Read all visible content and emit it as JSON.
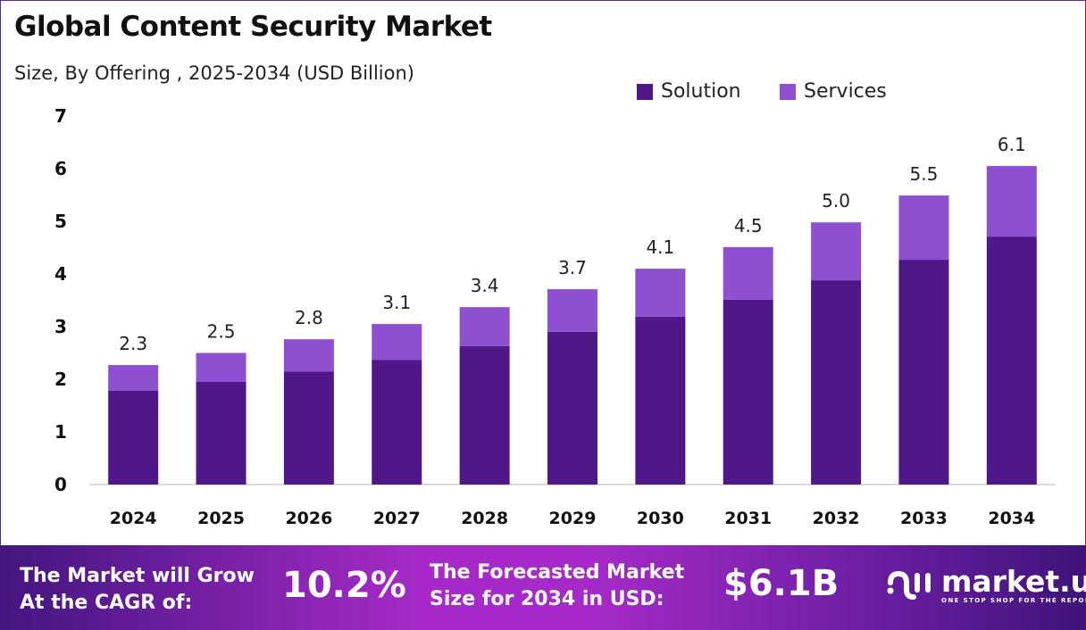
{
  "header": {
    "title": "Global Content Security Market",
    "subtitle": "Size, By Offering , 2025-2034 (USD Billion)"
  },
  "chart_data": {
    "type": "bar",
    "stacked": true,
    "title": "Global Content Security Market",
    "subtitle": "Size, By Offering , 2025-2034 (USD Billion)",
    "categories": [
      "2024",
      "2025",
      "2026",
      "2027",
      "2028",
      "2029",
      "2030",
      "2031",
      "2032",
      "2033",
      "2034"
    ],
    "series": [
      {
        "name": "Solution",
        "color": "#4f1787",
        "values": [
          1.78,
          1.95,
          2.15,
          2.37,
          2.63,
          2.9,
          3.19,
          3.51,
          3.88,
          4.27,
          4.71
        ]
      },
      {
        "name": "Services",
        "color": "#8e4fd0",
        "values": [
          0.49,
          0.55,
          0.61,
          0.68,
          0.74,
          0.81,
          0.91,
          1.0,
          1.1,
          1.22,
          1.34
        ]
      }
    ],
    "totals_labels": [
      "2.3",
      "2.5",
      "2.8",
      "3.1",
      "3.4",
      "3.7",
      "4.1",
      "4.5",
      "5.0",
      "5.5",
      "6.1"
    ],
    "yticks": [
      "0",
      "1",
      "2",
      "3",
      "4",
      "5",
      "6",
      "7"
    ],
    "ylim": [
      0,
      7
    ],
    "grid": false,
    "legend_position": "top-right"
  },
  "banner": {
    "cagr_text_1": "The Market will Grow",
    "cagr_text_2": "At the CAGR of:",
    "cagr_value": "10.2%",
    "forecast_text_1": "The Forecasted Market",
    "forecast_text_2": "Size for 2034 in USD:",
    "forecast_value": "$6.1B",
    "logo_name": "market.us",
    "logo_tagline": "ONE STOP SHOP FOR THE REPORTS"
  }
}
